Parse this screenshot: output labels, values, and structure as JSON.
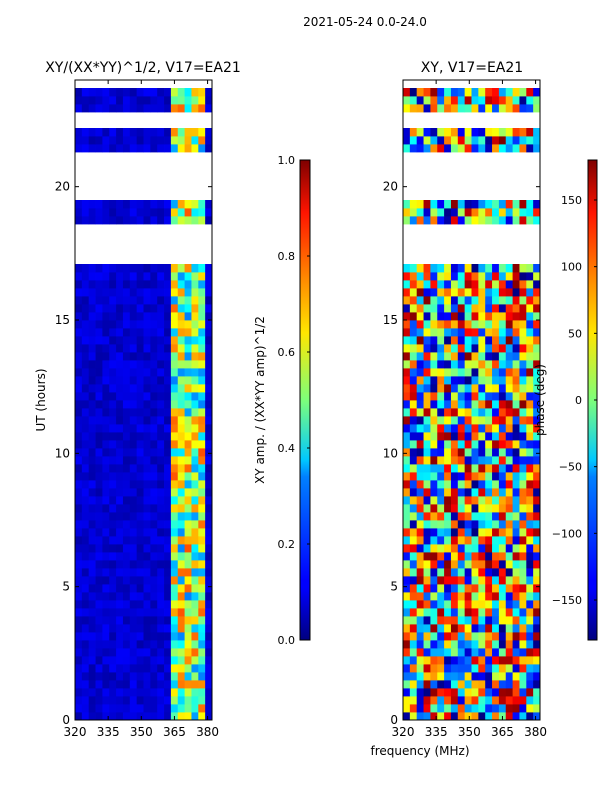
{
  "figure": {
    "suptitle": "2021-05-24 0.0-24.0"
  },
  "chart_data": [
    {
      "type": "heatmap",
      "title": "XY/(XX*YY)^1/2, V17=EA21",
      "xlabel": "",
      "ylabel": "UT (hours)",
      "x_ticks": [
        320,
        335,
        350,
        365,
        380
      ],
      "x_tick_labels": [
        "320",
        "335",
        "350",
        "365",
        "380"
      ],
      "y_ticks": [
        0,
        5,
        10,
        15,
        20
      ],
      "y_tick_labels": [
        "0",
        "5",
        "10",
        "15",
        "20"
      ],
      "xlim": [
        320,
        382
      ],
      "ylim": [
        0,
        24
      ],
      "blank_ut_gaps": [
        [
          17.0,
          18.7
        ],
        [
          19.45,
          21.3
        ],
        [
          22.25,
          22.85
        ],
        [
          23.6,
          24.0
        ]
      ],
      "colorbar": {
        "label": "XY amp. / (XX*YY amp)^1/2",
        "min": 0.0,
        "max": 1.0,
        "ticks": [
          0.0,
          0.2,
          0.4,
          0.6,
          0.8,
          1.0
        ],
        "tick_labels": [
          "0.0",
          "0.2",
          "0.4",
          "0.6",
          "0.8",
          "1.0"
        ],
        "colormap": "jet"
      }
    },
    {
      "type": "heatmap",
      "title": "XY, V17=EA21",
      "xlabel": "frequency (MHz)",
      "ylabel": "",
      "x_ticks": [
        320,
        335,
        350,
        365,
        380
      ],
      "x_tick_labels": [
        "320",
        "335",
        "350",
        "365",
        "380"
      ],
      "y_ticks": [
        0,
        5,
        10,
        15,
        20
      ],
      "y_tick_labels": [
        "0",
        "5",
        "10",
        "15",
        "20"
      ],
      "xlim": [
        320,
        382
      ],
      "ylim": [
        0,
        24
      ],
      "blank_ut_gaps": [
        [
          17.0,
          18.7
        ],
        [
          19.45,
          21.3
        ],
        [
          22.25,
          22.85
        ],
        [
          23.6,
          24.0
        ]
      ],
      "colorbar": {
        "label": "phase (deg)",
        "min": -180,
        "max": 180,
        "ticks": [
          -150,
          -100,
          -50,
          0,
          50,
          100,
          150
        ],
        "tick_labels": [
          "−150",
          "−100",
          "−50",
          "0",
          "50",
          "100",
          "150"
        ],
        "colormap": "jet"
      }
    }
  ]
}
